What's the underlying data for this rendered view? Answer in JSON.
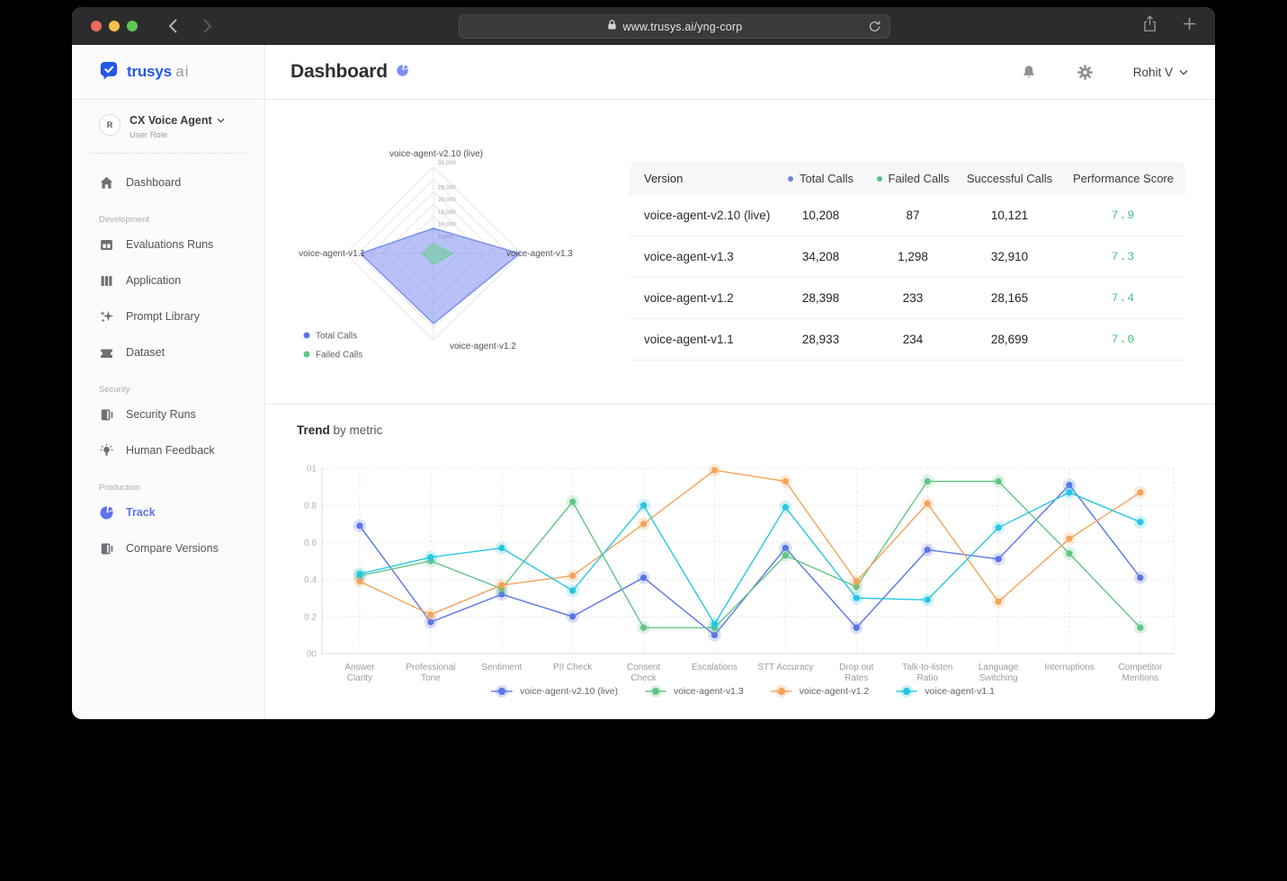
{
  "browser": {
    "url": "www.trusys.ai/yng-corp",
    "traffic_lights": {
      "close": "#ed6a5e",
      "minimize": "#f5bf4f",
      "zoom": "#62c554"
    }
  },
  "sidebar": {
    "logo": {
      "brand": "trusys",
      "suffix": "ai",
      "brand_color": "#2356e8"
    },
    "workspace": {
      "avatar_letter": "R",
      "name": "CX Voice Agent",
      "role": "User Role"
    },
    "sections": [
      {
        "label": "",
        "items": [
          {
            "icon": "home-icon",
            "label": "Dashboard",
            "active": false
          }
        ]
      },
      {
        "label": "Development",
        "items": [
          {
            "icon": "evaluations-icon",
            "label": "Evaluations Runs",
            "active": false
          },
          {
            "icon": "application-icon",
            "label": "Application",
            "active": false
          },
          {
            "icon": "prompt-library-icon",
            "label": "Prompt Library",
            "active": false
          },
          {
            "icon": "dataset-icon",
            "label": "Dataset",
            "active": false
          }
        ]
      },
      {
        "label": "Security",
        "items": [
          {
            "icon": "security-runs-icon",
            "label": "Security Runs",
            "active": false
          },
          {
            "icon": "human-feedback-icon",
            "label": "Human Feedback",
            "active": false
          }
        ]
      },
      {
        "label": "Production",
        "items": [
          {
            "icon": "track-icon",
            "label": "Track",
            "active": true
          },
          {
            "icon": "compare-versions-icon",
            "label": "Compare Versions",
            "active": false
          }
        ]
      }
    ]
  },
  "header": {
    "title": "Dashboard",
    "user": "Rohit V",
    "accent_color": "#7c8ff0"
  },
  "table": {
    "headers": [
      {
        "label": "Version",
        "dot": null
      },
      {
        "label": "Total Calls",
        "dot": "#6b7fe8"
      },
      {
        "label": "Failed Calls",
        "dot": "#55c285"
      },
      {
        "label": "Successful Calls",
        "dot": null
      },
      {
        "label": "Performance Score",
        "dot": null
      }
    ],
    "score_color": "#41c481",
    "rows": [
      {
        "version": "voice-agent-v2.10 (live)",
        "total_calls": "10,208",
        "failed_calls": "87",
        "successful_calls": "10,121",
        "performance_score": "7.9"
      },
      {
        "version": "voice-agent-v1.3",
        "total_calls": "34,208",
        "failed_calls": "1,298",
        "successful_calls": "32,910",
        "performance_score": "7.3"
      },
      {
        "version": "voice-agent-v1.2",
        "total_calls": "28,398",
        "failed_calls": "233",
        "successful_calls": "28,165",
        "performance_score": "7.4"
      },
      {
        "version": "voice-agent-v1.1",
        "total_calls": "28,933",
        "failed_calls": "234",
        "successful_calls": "28,699",
        "performance_score": "7.0"
      }
    ]
  },
  "chart_data": [
    {
      "type": "radar",
      "axes": [
        "voice-agent-v2.10 (live)",
        "voice-agent-v1.3",
        "voice-agent-v1.2",
        "voice-agent-v1.1"
      ],
      "max": 35000,
      "ring_labels": [
        {
          "text": "5,000",
          "value": 5000
        },
        {
          "text": "10,000",
          "value": 10000
        },
        {
          "text": "15,000",
          "value": 15000
        },
        {
          "text": "20,000",
          "value": 20000
        },
        {
          "text": "25,000",
          "value": 25000
        },
        {
          "text": "35,000",
          "value": 35000
        }
      ],
      "series": [
        {
          "name": "Total Calls",
          "color": "#7d8ff2",
          "fill": "rgba(125,143,242,0.55)",
          "values": [
            10208,
            34208,
            28398,
            28933
          ]
        },
        {
          "name": "Failed Calls",
          "color": "#6fcf97",
          "fill": "rgba(111,207,151,0.6)",
          "values": [
            87,
            1298,
            233,
            234
          ]
        }
      ],
      "legend_position": "bottom-left"
    },
    {
      "type": "line",
      "title": "Trend",
      "subtitle": "by metric",
      "ylim": [
        0,
        1
      ],
      "y_ticks": [
        {
          "label": "01",
          "value": 1.0
        },
        {
          "label": "0.8",
          "value": 0.8
        },
        {
          "label": "0.6",
          "value": 0.6
        },
        {
          "label": "0.4",
          "value": 0.4
        },
        {
          "label": "0.2",
          "value": 0.2
        },
        {
          "label": "00",
          "value": 0.0
        }
      ],
      "grid": "dashed",
      "categories": [
        "Answer Clarity",
        "Professional Tone",
        "Sentiment",
        "PII Check",
        "Consent Check",
        "Escalations",
        "STT Accuracy",
        "Drop out Rates",
        "Talk-to-listen Ratio",
        "Language Switching",
        "Interruptions",
        "Competitor Mentions"
      ],
      "category_label_lines": [
        [
          "Answer",
          "Clarity"
        ],
        [
          "Professional",
          "Tone"
        ],
        [
          "Sentiment"
        ],
        [
          "PII Check"
        ],
        [
          "Consent",
          "Check"
        ],
        [
          "Escalations"
        ],
        [
          "STT Accuracy"
        ],
        [
          "Drop out",
          "Rates"
        ],
        [
          "Talk-to-listen",
          "Ratio"
        ],
        [
          "Language",
          "Switching"
        ],
        [
          "Interruptions"
        ],
        [
          "Competitor",
          "Mentions"
        ]
      ],
      "series": [
        {
          "name": "voice-agent-v2.10 (live)",
          "color": "#5b74e8",
          "values": [
            0.69,
            0.17,
            0.32,
            0.2,
            0.41,
            0.1,
            0.57,
            0.14,
            0.56,
            0.51,
            0.91,
            0.41
          ]
        },
        {
          "name": "voice-agent-v1.3",
          "color": "#63c584",
          "values": [
            0.42,
            0.5,
            0.35,
            0.82,
            0.14,
            0.14,
            0.53,
            0.36,
            0.93,
            0.93,
            0.54,
            0.14
          ]
        },
        {
          "name": "voice-agent-v1.2",
          "color": "#f2a45c",
          "values": [
            0.39,
            0.21,
            0.37,
            0.42,
            0.7,
            0.99,
            0.93,
            0.39,
            0.81,
            0.28,
            0.62,
            0.87
          ]
        },
        {
          "name": "voice-agent-v1.1",
          "color": "#27c6e3",
          "values": [
            0.43,
            0.52,
            0.57,
            0.34,
            0.8,
            0.16,
            0.79,
            0.3,
            0.29,
            0.68,
            0.87,
            0.71
          ]
        }
      ],
      "legend_position": "bottom-center"
    }
  ]
}
